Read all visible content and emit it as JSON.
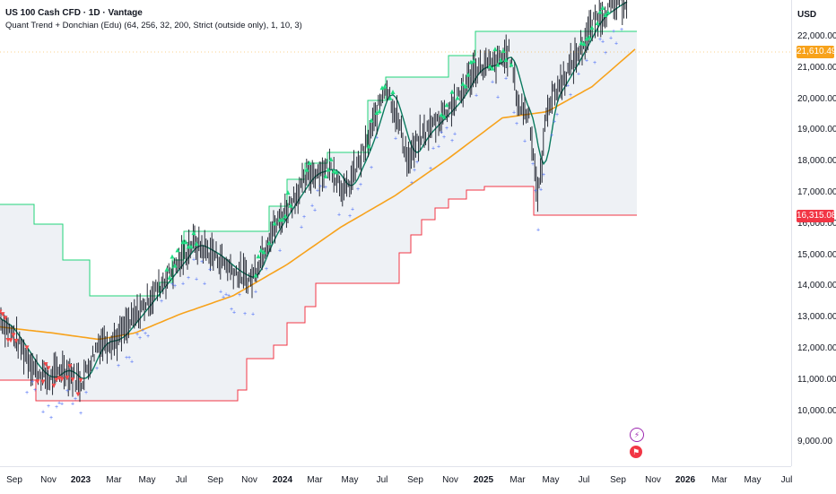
{
  "header": {
    "title": "US 100 Cash CFD · 1D · Vantage",
    "indicator": "Quant Trend + Donchian (Edu) (64, 256, 32, 200, Strict (outside only), 1, 10, 3)"
  },
  "axis": {
    "currency": "USD",
    "y_labels": [
      "22,000.00",
      "21,000.00",
      "20,000.00",
      "19,000.00",
      "18,000.00",
      "17,000.00",
      "16,000.00",
      "15,000.00",
      "14,000.00",
      "13,000.00",
      "12,000.00",
      "11,000.00",
      "10,000.00",
      "9,000.00"
    ],
    "x_labels": [
      {
        "text": "Sep",
        "bold": false
      },
      {
        "text": "Nov",
        "bold": false
      },
      {
        "text": "2023",
        "bold": true
      },
      {
        "text": "Mar",
        "bold": false
      },
      {
        "text": "May",
        "bold": false
      },
      {
        "text": "Jul",
        "bold": false
      },
      {
        "text": "Sep",
        "bold": false
      },
      {
        "text": "Nov",
        "bold": false
      },
      {
        "text": "2024",
        "bold": true
      },
      {
        "text": "Mar",
        "bold": false
      },
      {
        "text": "May",
        "bold": false
      },
      {
        "text": "Jul",
        "bold": false
      },
      {
        "text": "Sep",
        "bold": false
      },
      {
        "text": "Nov",
        "bold": false
      },
      {
        "text": "2025",
        "bold": true
      },
      {
        "text": "Mar",
        "bold": false
      },
      {
        "text": "May",
        "bold": false
      },
      {
        "text": "Jul",
        "bold": false
      },
      {
        "text": "Sep",
        "bold": false
      },
      {
        "text": "Nov",
        "bold": false
      },
      {
        "text": "2026",
        "bold": true
      },
      {
        "text": "Mar",
        "bold": false
      },
      {
        "text": "May",
        "bold": false
      },
      {
        "text": "Jul",
        "bold": false
      }
    ]
  },
  "price_tags": {
    "current": "21,610.49",
    "lower": "16,315.08"
  },
  "colors": {
    "upper_band": "#22d47a",
    "lower_band": "#f23645",
    "fill": "#eef1f5",
    "price": "#131722",
    "ma_fast": "#0b7a5f",
    "ma_slow": "#f7a21b",
    "buy": "#20dd83",
    "sell": "#f44a4a",
    "dots": "#4a6cf7",
    "current_tag": "#f7a21b",
    "lower_tag": "#f23645"
  },
  "icons": [
    "lightning-icon",
    "flag-icon"
  ]
}
